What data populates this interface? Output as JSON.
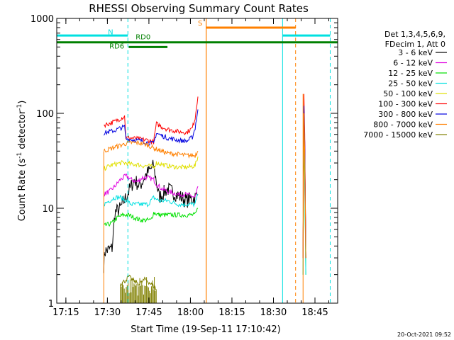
{
  "chart_data": {
    "type": "line",
    "title": "RHESSI Observing Summary Count Rates",
    "xlabel": "Start Time (19-Sep-11 17:10:42)",
    "ylabel_main": "Count Rate (s",
    "ylabel_sup1": "-1",
    "ylabel_mid": " detector",
    "ylabel_sup2": "-1",
    "ylabel_end": ")",
    "y_log": true,
    "ylim": [
      1,
      1000
    ],
    "x_unit": "minutes after 17:10:42",
    "xlim": [
      0,
      40.5
    ],
    "x_ticks": [
      {
        "x": 3.3,
        "label": "17:15"
      },
      {
        "x": 18.3,
        "label": "17:30"
      },
      {
        "x": 33.3,
        "label": "17:45"
      },
      {
        "x": 48.3,
        "label": "18:00"
      },
      {
        "x": 63.3,
        "label": "18:15"
      },
      {
        "x": 78.3,
        "label": "18:30"
      },
      {
        "x": 93.3,
        "label": "18:45"
      }
    ],
    "y_ticks": [
      {
        "y": 1,
        "label": "1"
      },
      {
        "y": 10,
        "label": "10"
      },
      {
        "y": 100,
        "label": "100"
      },
      {
        "y": 1000,
        "label": "1000"
      }
    ],
    "legend_header": [
      "Det 1,3,4,5,6,9,",
      "FDecim 1, Att 0"
    ],
    "series": [
      {
        "name": "3 - 6 keV",
        "color": "#000000",
        "seg1": [
          [
            17,
            2.5
          ],
          [
            17.3,
            3.5
          ],
          [
            20,
            3.8
          ],
          [
            21,
            9
          ],
          [
            23,
            10
          ],
          [
            26,
            15
          ],
          [
            28,
            20
          ],
          [
            30,
            17
          ],
          [
            32,
            22
          ],
          [
            35,
            28
          ],
          [
            37,
            13
          ],
          [
            40,
            16
          ],
          [
            45,
            13
          ],
          [
            47,
            12
          ],
          [
            50,
            13
          ],
          [
            51,
            14
          ]
        ],
        "seg2": [
          [
            89,
            3
          ],
          [
            89.3,
            90
          ],
          [
            89.6,
            40
          ],
          [
            90,
            3
          ]
        ]
      },
      {
        "name": "6 - 12 keV",
        "color": "#e000e0",
        "seg1": [
          [
            17,
            14
          ],
          [
            19,
            15
          ],
          [
            21,
            17
          ],
          [
            23,
            20
          ],
          [
            25,
            22
          ],
          [
            27,
            20
          ],
          [
            29,
            19
          ],
          [
            31,
            21
          ],
          [
            33,
            21
          ],
          [
            35,
            20
          ],
          [
            36,
            18
          ],
          [
            38,
            16
          ],
          [
            40,
            15
          ],
          [
            44,
            14
          ],
          [
            47,
            14
          ],
          [
            50,
            13
          ],
          [
            51,
            17
          ]
        ],
        "seg2": [
          [
            89,
            3
          ],
          [
            89.3,
            110
          ],
          [
            89.6,
            50
          ],
          [
            90,
            3
          ]
        ]
      },
      {
        "name": "12 - 25 keV",
        "color": "#00e000",
        "seg1": [
          [
            17,
            6.5
          ],
          [
            20,
            7
          ],
          [
            22,
            8
          ],
          [
            24,
            8.5
          ],
          [
            26,
            8.5
          ],
          [
            28,
            8
          ],
          [
            30,
            7.5
          ],
          [
            32,
            7.5
          ],
          [
            34,
            7.5
          ],
          [
            35,
            9
          ],
          [
            37,
            8.5
          ],
          [
            40,
            8.5
          ],
          [
            44,
            8.5
          ],
          [
            47,
            8.5
          ],
          [
            50,
            8.5
          ],
          [
            51,
            10
          ]
        ],
        "seg2": [
          [
            89,
            2
          ],
          [
            89.3,
            50
          ],
          [
            89.6,
            20
          ],
          [
            90,
            2
          ]
        ]
      },
      {
        "name": "25 - 50 keV",
        "color": "#00e0e0",
        "seg1": [
          [
            17,
            11
          ],
          [
            19,
            12
          ],
          [
            21,
            13
          ],
          [
            23,
            13
          ],
          [
            25,
            12
          ],
          [
            27,
            11
          ],
          [
            29,
            11
          ],
          [
            31,
            11
          ],
          [
            33,
            11
          ],
          [
            35,
            13
          ],
          [
            37,
            12
          ],
          [
            40,
            12
          ],
          [
            44,
            11
          ],
          [
            47,
            11
          ],
          [
            50,
            11
          ],
          [
            51,
            14
          ]
        ],
        "seg2": [
          [
            89,
            2
          ],
          [
            89.3,
            60
          ],
          [
            89.6,
            25
          ],
          [
            90,
            2
          ]
        ]
      },
      {
        "name": "50 - 100 keV",
        "color": "#e0e000",
        "seg1": [
          [
            17,
            26
          ],
          [
            19,
            28
          ],
          [
            21,
            29
          ],
          [
            23,
            30
          ],
          [
            25,
            30
          ],
          [
            27,
            29
          ],
          [
            29,
            29
          ],
          [
            31,
            28
          ],
          [
            33,
            28
          ],
          [
            35,
            27
          ],
          [
            36,
            30
          ],
          [
            38,
            29
          ],
          [
            40,
            28
          ],
          [
            44,
            27
          ],
          [
            47,
            27
          ],
          [
            50,
            28
          ],
          [
            51,
            35
          ]
        ],
        "seg2": [
          [
            89,
            3
          ],
          [
            89.3,
            80
          ],
          [
            89.6,
            30
          ],
          [
            90,
            3
          ]
        ]
      },
      {
        "name": "100 - 300 keV",
        "color": "#ff0000",
        "seg1": [
          [
            17,
            75
          ],
          [
            19,
            78
          ],
          [
            21,
            82
          ],
          [
            23,
            88
          ],
          [
            24.5,
            93
          ],
          [
            25,
            55
          ],
          [
            27,
            55
          ],
          [
            29,
            54
          ],
          [
            31,
            53
          ],
          [
            33,
            52
          ],
          [
            35,
            50
          ],
          [
            36,
            78
          ],
          [
            38,
            72
          ],
          [
            40,
            68
          ],
          [
            44,
            64
          ],
          [
            47,
            63
          ],
          [
            49,
            70
          ],
          [
            50,
            90
          ],
          [
            51,
            150
          ]
        ],
        "seg2": [
          [
            89,
            3
          ],
          [
            89.3,
            160
          ],
          [
            89.6,
            60
          ],
          [
            90,
            3
          ]
        ]
      },
      {
        "name": "300 - 800 keV",
        "color": "#0000e0",
        "seg1": [
          [
            17,
            62
          ],
          [
            19,
            64
          ],
          [
            21,
            66
          ],
          [
            23,
            70
          ],
          [
            24.5,
            72
          ],
          [
            25,
            54
          ],
          [
            27,
            53
          ],
          [
            29,
            52
          ],
          [
            31,
            51
          ],
          [
            33,
            49
          ],
          [
            35,
            48
          ],
          [
            36,
            62
          ],
          [
            38,
            58
          ],
          [
            40,
            55
          ],
          [
            44,
            52
          ],
          [
            47,
            51
          ],
          [
            49,
            56
          ],
          [
            50,
            70
          ],
          [
            51,
            110
          ]
        ],
        "seg2": [
          [
            89,
            3
          ],
          [
            89.3,
            120
          ],
          [
            89.6,
            50
          ],
          [
            90,
            3
          ]
        ]
      },
      {
        "name": "800 - 7000 keV",
        "color": "#ff8000",
        "seg1": [
          [
            17,
            40
          ],
          [
            19,
            42
          ],
          [
            21,
            44
          ],
          [
            23,
            46
          ],
          [
            25,
            48
          ],
          [
            27,
            49
          ],
          [
            29,
            49
          ],
          [
            31,
            48
          ],
          [
            33,
            46
          ],
          [
            35,
            43
          ],
          [
            36,
            42
          ],
          [
            38,
            40
          ],
          [
            40,
            38
          ],
          [
            44,
            37
          ],
          [
            47,
            36
          ],
          [
            50,
            36
          ],
          [
            51,
            40
          ]
        ],
        "seg2": [
          [
            89,
            3
          ],
          [
            89.3,
            100
          ],
          [
            89.6,
            40
          ],
          [
            90,
            3
          ]
        ]
      },
      {
        "name": "7000 - 15000 keV",
        "color": "#808000",
        "seg1": [
          [
            23,
            1.6
          ],
          [
            24.5,
            1.7
          ],
          [
            26,
            1.9
          ],
          [
            28,
            1.7
          ],
          [
            30,
            1.6
          ],
          [
            32,
            1.8
          ],
          [
            34,
            1.6
          ],
          [
            36,
            1.4
          ]
        ],
        "seg2": []
      }
    ],
    "top_labels": [
      {
        "text": "N",
        "color": "#00e0e0"
      },
      {
        "text": "RD0",
        "color": "#008000"
      },
      {
        "text": "RD6",
        "color": "#008000"
      },
      {
        "text": "S",
        "color": "#ff8000"
      }
    ],
    "footer_date": "20-Oct-2021 09:52"
  }
}
